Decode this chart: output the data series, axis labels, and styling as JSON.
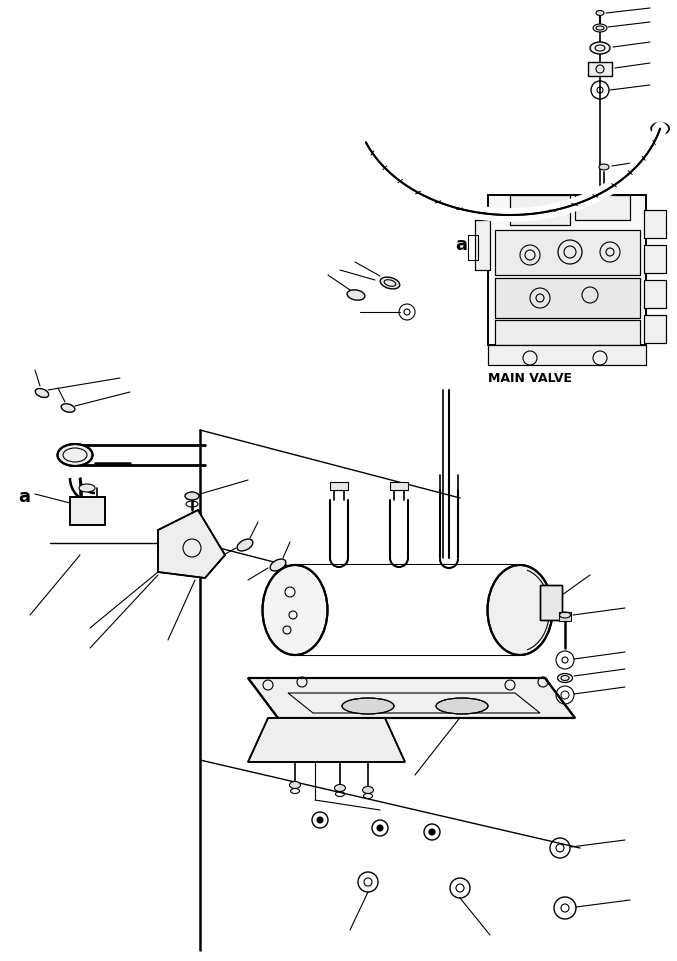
{
  "bg_color": "#ffffff",
  "line_color": "#000000",
  "main_valve_label": "MAIN VALVE",
  "label_a": "a",
  "fig_width": 6.77,
  "fig_height": 9.61,
  "dpi": 100
}
